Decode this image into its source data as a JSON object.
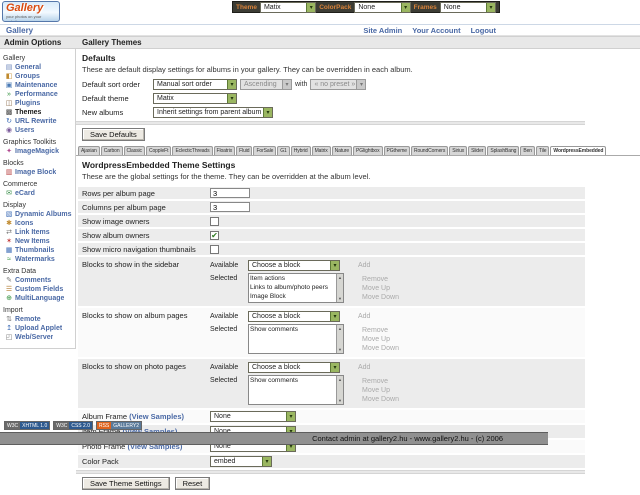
{
  "logo": {
    "title": "Gallery",
    "tagline": "your photos on your website"
  },
  "topbar": {
    "groups": [
      {
        "label": "Theme",
        "value": "Matix",
        "name": "theme-select"
      },
      {
        "label": "ColorPack",
        "value": "None",
        "name": "colorpack-select"
      },
      {
        "label": "Frames",
        "value": "None",
        "name": "frames-select"
      }
    ]
  },
  "header": {
    "breadcrumb": "Gallery",
    "links": [
      {
        "label": "Site Admin",
        "name": "site-admin-link"
      },
      {
        "label": "Your Account",
        "name": "your-account-link"
      },
      {
        "label": "Logout",
        "name": "logout-link"
      }
    ]
  },
  "sidebar": {
    "title": "Admin Options",
    "sections": [
      {
        "title": "Gallery",
        "items": [
          {
            "label": "General",
            "name": "sidebar-item-general",
            "icon": "general-icon",
            "glyph": "▤",
            "color": "#6b85bb",
            "cls": "sb-link"
          },
          {
            "label": "Groups",
            "name": "sidebar-item-groups",
            "icon": "groups-icon",
            "glyph": "◧",
            "color": "#c08a2e",
            "cls": "sb-link"
          },
          {
            "label": "Maintenance",
            "name": "sidebar-item-maintenance",
            "icon": "maintenance-icon",
            "glyph": "▣",
            "color": "#4a7ab5",
            "cls": "sb-link"
          },
          {
            "label": "Performance",
            "name": "sidebar-item-performance",
            "icon": "performance-icon",
            "glyph": "»",
            "color": "#2e8f3a",
            "cls": "sb-link"
          },
          {
            "label": "Plugins",
            "name": "sidebar-item-plugins",
            "icon": "plugins-icon",
            "glyph": "◫",
            "color": "#8a6a4a",
            "cls": "sb-link"
          },
          {
            "label": "Themes",
            "name": "sidebar-item-themes",
            "icon": "themes-icon",
            "glyph": "▩",
            "color": "#444444",
            "cls": "sb-link current"
          },
          {
            "label": "URL Rewrite",
            "name": "sidebar-item-url-rewrite",
            "icon": "url-rewrite-icon",
            "glyph": "↻",
            "color": "#3a6ab5",
            "cls": "sb-link"
          },
          {
            "label": "Users",
            "name": "sidebar-item-users",
            "icon": "users-icon",
            "glyph": "◉",
            "color": "#7a5a9a",
            "cls": "sb-link"
          }
        ]
      },
      {
        "title": "Graphics Toolkits",
        "items": [
          {
            "label": "ImageMagick",
            "name": "sidebar-item-imagemagick",
            "icon": "imagemagick-icon",
            "glyph": "✦",
            "color": "#b04a8f",
            "cls": "sb-link"
          }
        ]
      },
      {
        "title": "Blocks",
        "items": [
          {
            "label": "Image Block",
            "name": "sidebar-item-image-block",
            "icon": "image-block-icon",
            "glyph": "▥",
            "color": "#b53a3a",
            "cls": "sb-link"
          }
        ]
      },
      {
        "title": "Commerce",
        "items": [
          {
            "label": "eCard",
            "name": "sidebar-item-ecard",
            "icon": "ecard-icon",
            "glyph": "✉",
            "color": "#3a8f4a",
            "cls": "sb-link"
          }
        ]
      },
      {
        "title": "Display",
        "items": [
          {
            "label": "Dynamic Albums",
            "name": "sidebar-item-dynamic-albums",
            "icon": "dynamic-albums-icon",
            "glyph": "▧",
            "color": "#3a6ab5",
            "cls": "sb-link"
          },
          {
            "label": "Icons",
            "name": "sidebar-item-icons",
            "icon": "icons-icon",
            "glyph": "✱",
            "color": "#c08a2e",
            "cls": "sb-link"
          },
          {
            "label": "Link Items",
            "name": "sidebar-item-link-items",
            "icon": "link-items-icon",
            "glyph": "⇄",
            "color": "#777777",
            "cls": "sb-link"
          },
          {
            "label": "New Items",
            "name": "sidebar-item-new-items",
            "icon": "new-items-icon",
            "glyph": "✶",
            "color": "#c23a3a",
            "cls": "sb-link"
          },
          {
            "label": "Thumbnails",
            "name": "sidebar-item-thumbnails",
            "icon": "thumbnails-icon",
            "glyph": "▦",
            "color": "#3a6ab5",
            "cls": "sb-link"
          },
          {
            "label": "Watermarks",
            "name": "sidebar-item-watermarks",
            "icon": "watermarks-icon",
            "glyph": "≈",
            "color": "#2e8f3a",
            "cls": "sb-link"
          }
        ]
      },
      {
        "title": "Extra Data",
        "items": [
          {
            "label": "Comments",
            "name": "sidebar-item-comments",
            "icon": "comments-icon",
            "glyph": "✎",
            "color": "#777777",
            "cls": "sb-link"
          },
          {
            "label": "Custom Fields",
            "name": "sidebar-item-custom-fields",
            "icon": "custom-fields-icon",
            "glyph": "☰",
            "color": "#b07a2e",
            "cls": "sb-link"
          },
          {
            "label": "MultiLanguage",
            "name": "sidebar-item-multilanguage",
            "icon": "multilanguage-icon",
            "glyph": "⊕",
            "color": "#2e8f3a",
            "cls": "sb-link"
          }
        ]
      },
      {
        "title": "Import",
        "items": [
          {
            "label": "Remote",
            "name": "sidebar-item-remote",
            "icon": "remote-icon",
            "glyph": "⇅",
            "color": "#777777",
            "cls": "sb-link"
          },
          {
            "label": "Upload Applet",
            "name": "sidebar-item-upload-applet",
            "icon": "upload-applet-icon",
            "glyph": "↥",
            "color": "#3a6ab5",
            "cls": "sb-link"
          },
          {
            "label": "Web/Server",
            "name": "sidebar-item-web-server",
            "icon": "web-server-icon",
            "glyph": "◰",
            "color": "#777777",
            "cls": "sb-link"
          }
        ]
      }
    ]
  },
  "main": {
    "page_title": "Gallery Themes",
    "defaults": {
      "title": "Defaults",
      "description": "These are default display settings for albums in your gallery. They can be overridden in each album.",
      "sort_label": "Default sort order",
      "sort_value": "Manual sort order",
      "direction_value": "Ascending",
      "with_label": "with",
      "preset_value": "« no preset »",
      "theme_label": "Default theme",
      "theme_value": "Matix",
      "new_albums_label": "New albums",
      "new_albums_value": "Inherit settings from parent album",
      "save_button": "Save Defaults"
    },
    "tabs": [
      {
        "label": "Ajaxian",
        "name": "tab-ajaxian",
        "cls": "tab"
      },
      {
        "label": "Carbon",
        "name": "tab-carbon",
        "cls": "tab"
      },
      {
        "label": "Classic",
        "name": "tab-classic",
        "cls": "tab"
      },
      {
        "label": "CoppleFt",
        "name": "tab-copplett",
        "cls": "tab"
      },
      {
        "label": "EclecticThreads",
        "name": "tab-eclecticthreads",
        "cls": "tab"
      },
      {
        "label": "Floatrix",
        "name": "tab-floatrix",
        "cls": "tab"
      },
      {
        "label": "Fluid",
        "name": "tab-fluid",
        "cls": "tab"
      },
      {
        "label": "ForSale",
        "name": "tab-forsale",
        "cls": "tab"
      },
      {
        "label": "G1",
        "name": "tab-g1",
        "cls": "tab"
      },
      {
        "label": "Hybrid",
        "name": "tab-hybrid",
        "cls": "tab"
      },
      {
        "label": "Matrix",
        "name": "tab-matrix",
        "cls": "tab"
      },
      {
        "label": "Nature",
        "name": "tab-nature",
        "cls": "tab"
      },
      {
        "label": "PGlightbox",
        "name": "tab-pglightbox",
        "cls": "tab"
      },
      {
        "label": "PGtheme",
        "name": "tab-pgtheme",
        "cls": "tab"
      },
      {
        "label": "RoundCorners",
        "name": "tab-roundcorners",
        "cls": "tab"
      },
      {
        "label": "Siriux",
        "name": "tab-siriux",
        "cls": "tab"
      },
      {
        "label": "Slider",
        "name": "tab-slider",
        "cls": "tab"
      },
      {
        "label": "SplashBang",
        "name": "tab-splashbang",
        "cls": "tab"
      },
      {
        "label": "Ben",
        "name": "tab-ben",
        "cls": "tab"
      },
      {
        "label": "Tile",
        "name": "tab-tile",
        "cls": "tab"
      },
      {
        "label": "WordpressEmbedded",
        "name": "tab-wordpressembedded",
        "cls": "tab active"
      }
    ],
    "settings": {
      "title": "WordpressEmbedded Theme Settings",
      "description": "These are the global settings for the theme. They can be overridden at the album level.",
      "rows_label": "Rows per album page",
      "rows_value": "3",
      "columns_label": "Columns per album page",
      "columns_value": "3",
      "image_owners_label": "Show image owners",
      "image_owners_check": "",
      "album_owners_label": "Show album owners",
      "album_owners_check": "✔",
      "micro_label": "Show micro navigation thumbnails",
      "micro_check": "",
      "blocks": [
        {
          "name": "blocks-sidebar-row",
          "row_label": "Blocks to show in the sidebar",
          "available_label": "Available",
          "choose_value": "Choose a block",
          "add_label": "Add",
          "selected_label": "Selected",
          "items": [
            {
              "label": "Item actions"
            },
            {
              "label": "Links to album/photo peers"
            },
            {
              "label": "Image Block"
            }
          ],
          "remove_label": "Remove",
          "move_up_label": "Move Up",
          "move_down_label": "Move Down",
          "cls": "srow blockrow"
        },
        {
          "name": "blocks-album-pages-row",
          "row_label": "Blocks to show on album pages",
          "available_label": "Available",
          "choose_value": "Choose a block",
          "add_label": "Add",
          "selected_label": "Selected",
          "items": [
            {
              "label": "Show comments"
            }
          ],
          "remove_label": "Remove",
          "move_up_label": "Move Up",
          "move_down_label": "Move Down",
          "cls": "srow blockrow bg-white"
        },
        {
          "name": "blocks-photo-pages-row",
          "row_label": "Blocks to show on photo pages",
          "available_label": "Available",
          "choose_value": "Choose a block",
          "add_label": "Add",
          "selected_label": "Selected",
          "items": [
            {
              "label": "Show comments"
            }
          ],
          "remove_label": "Remove",
          "move_up_label": "Move Up",
          "move_down_label": "Move Down",
          "cls": "srow blockrow"
        }
      ],
      "frames": [
        {
          "frame_label": "Album Frame",
          "samples_label": "(View Samples)",
          "value": "None",
          "name": "album-frame-select",
          "cls": "srow bg-white"
        },
        {
          "frame_label": "Item Frame",
          "samples_label": "(View Samples)",
          "value": "None",
          "name": "item-frame-select",
          "cls": "srow"
        },
        {
          "frame_label": "Photo Frame",
          "samples_label": "(View Samples)",
          "value": "None",
          "name": "photo-frame-select",
          "cls": "srow bg-white"
        }
      ],
      "colorpack_label": "Color Pack",
      "colorpack_value": "embed",
      "save_button": "Save Theme Settings",
      "reset_button": "Reset"
    }
  },
  "badges": [
    {
      "left": "W3C",
      "right": "XHTML 1.0",
      "color": "#2e5a8f",
      "name": "xhtml-badge"
    },
    {
      "left": "W3C",
      "right": "CSS 2.0",
      "color": "#2e5a8f",
      "name": "css-badge"
    },
    {
      "left": "RSS",
      "right": "GALLERY2",
      "left_color": "#e0641e",
      "color": "#5a7a9a",
      "name": "gallery-badge"
    }
  ],
  "footer": {
    "text": "Contact admin at gallery2.hu - www.gallery2.hu - (c) 2006"
  }
}
